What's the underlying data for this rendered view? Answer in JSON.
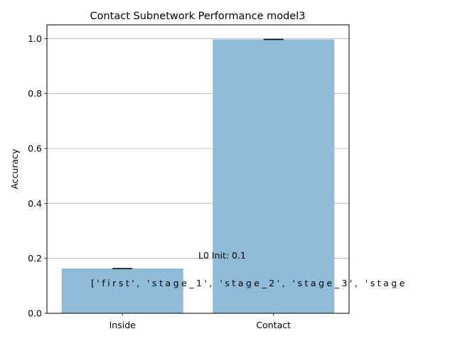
{
  "chart_data": {
    "type": "bar",
    "title": "Contact Subnetwork Performance model3",
    "xlabel": "",
    "ylabel": "Accuracy",
    "categories": [
      "Inside",
      "Contact"
    ],
    "values": [
      0.163,
      0.997
    ],
    "errors": [
      0.0,
      0.0
    ],
    "ylim": [
      0,
      1.05
    ],
    "yticks": [
      "0.0",
      "0.2",
      "0.4",
      "0.6",
      "0.8",
      "1.0"
    ],
    "ytick_values": [
      0.0,
      0.2,
      0.4,
      0.6,
      0.8,
      1.0
    ],
    "grid": "horizontal",
    "bar_color": "#8fbbd9",
    "annotations": [
      {
        "text": "L0 Init: 0.1"
      },
      {
        "text": "['first', 'stage_1', 'stage_2', 'stage_3', 'stage"
      }
    ]
  }
}
